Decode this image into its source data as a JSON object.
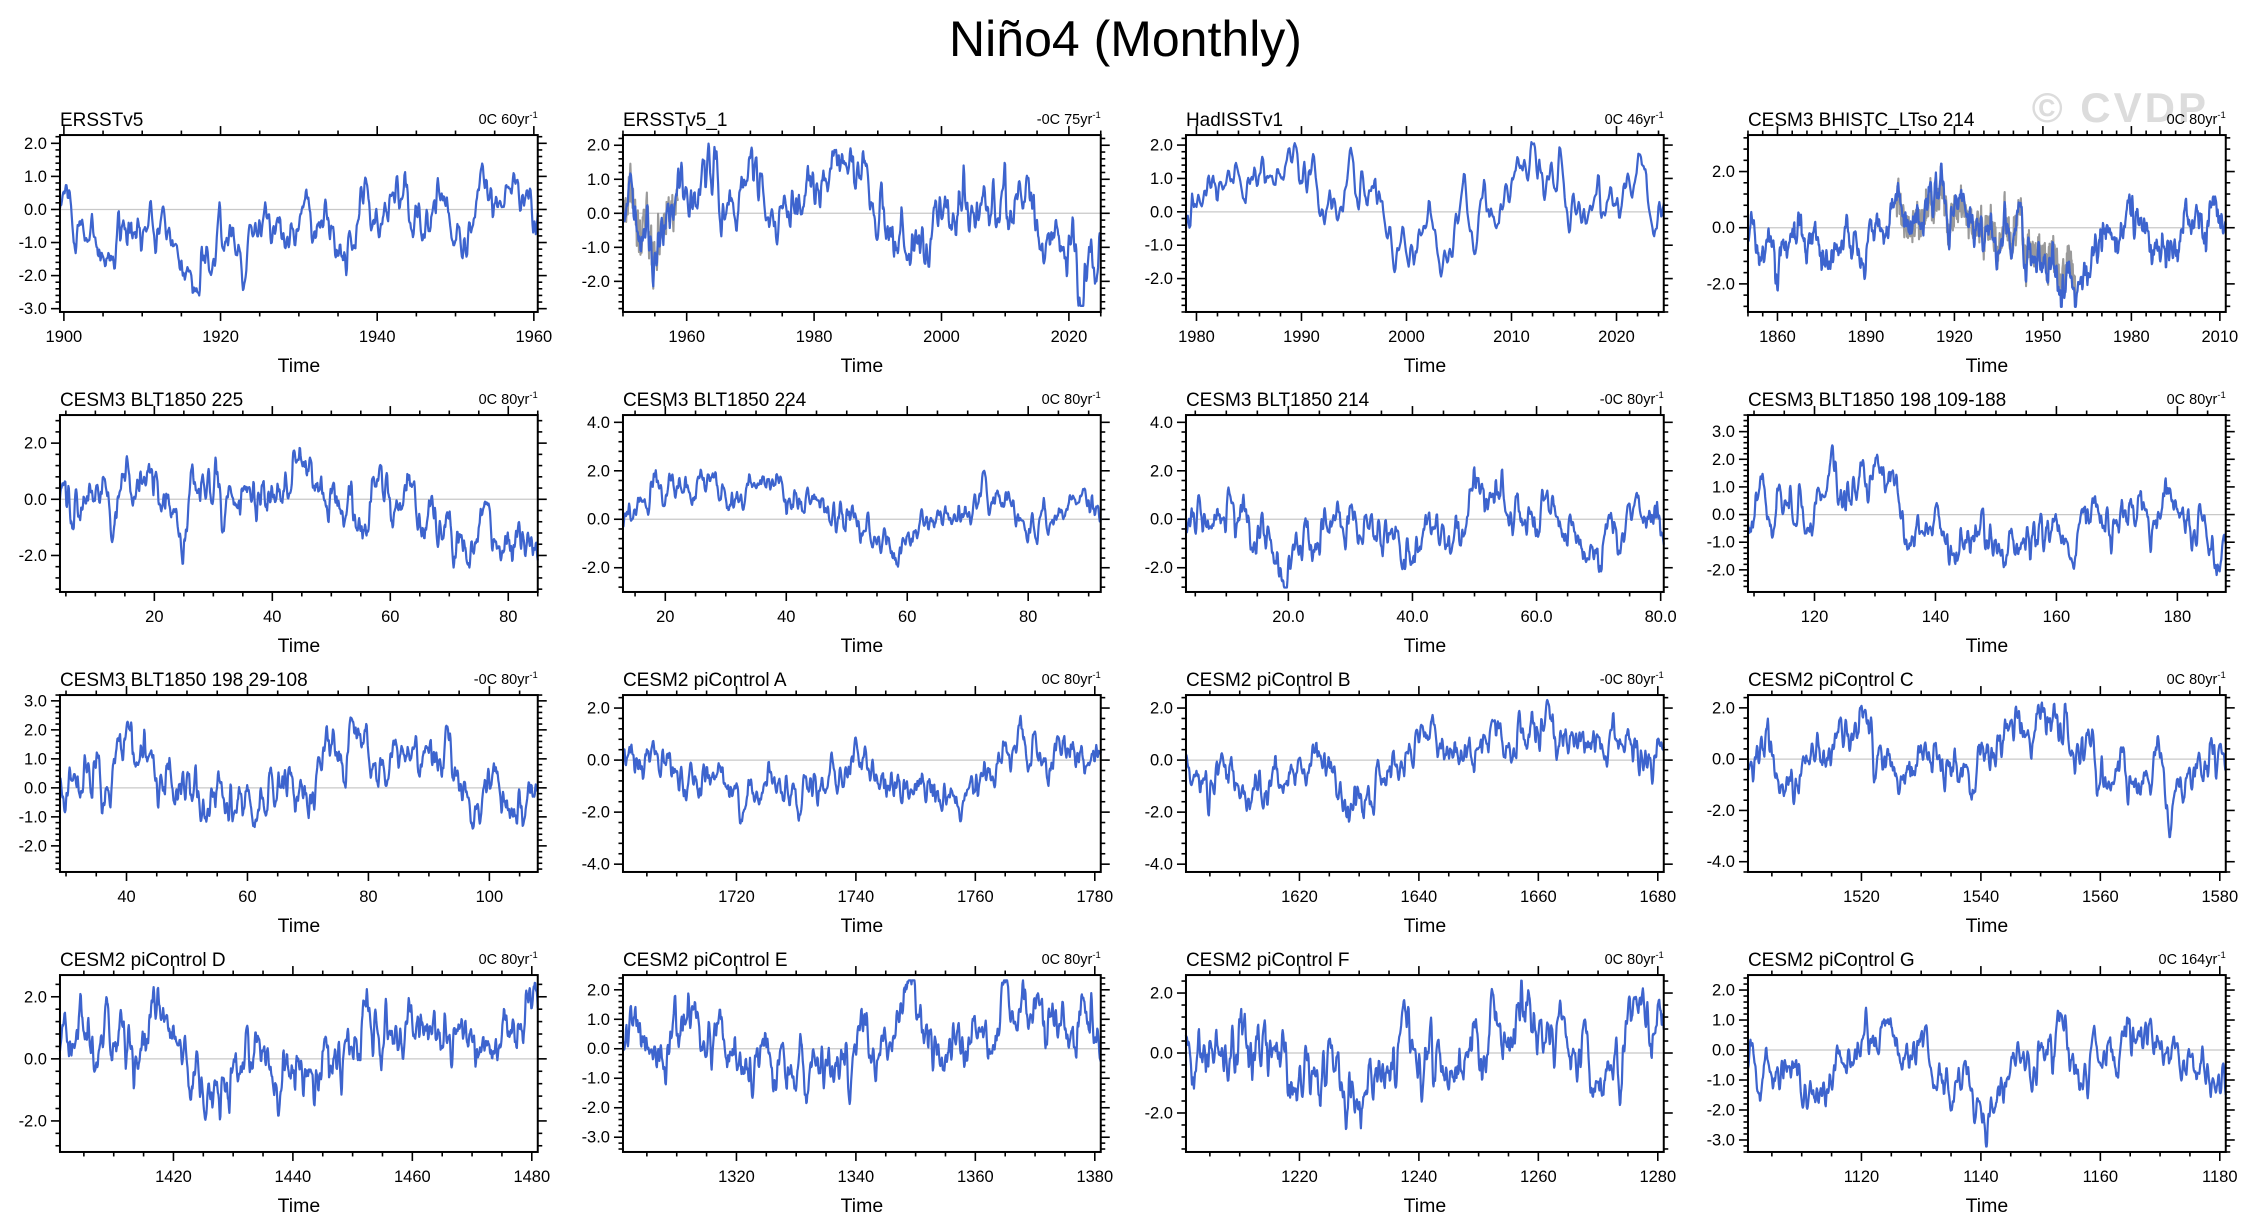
{
  "page": {
    "title": "Niño4 (Monthly)",
    "watermark": "© CVDP",
    "xlabel": "Time"
  },
  "colors": {
    "line": "#3D64CE",
    "overlay_line": "#9a9a9a",
    "zero_line": "#c8c8c8",
    "frame": "#000000",
    "watermark": "#dcdcdc"
  },
  "chart_data": [
    {
      "type": "line",
      "title": "ERSSTv5",
      "trend": "0C 60yr",
      "trend_exp": "-1",
      "xlabel": "Time",
      "xlim": [
        1899.5,
        1960.5
      ],
      "xticks": [
        1900,
        1920,
        1940,
        1960
      ],
      "xtick_labels": [
        "1900",
        "1920",
        "1940",
        "1960"
      ],
      "x_minor_step": 5,
      "ylim": [
        -3.1,
        2.25
      ],
      "yticks": [
        2,
        1,
        0,
        -1,
        -2,
        -3
      ],
      "ytick_labels": [
        "2.0",
        "1.0",
        "0.0",
        "-1.0",
        "-2.0",
        "-3.0"
      ],
      "y_minor_step": 0.2,
      "series_note": "monthly SST anomaly, approx range -2.5 to 1.9"
    },
    {
      "type": "line",
      "title": "ERSSTv5_1",
      "trend": "-0C 75yr",
      "trend_exp": "-1",
      "xlabel": "Time",
      "xlim": [
        1950,
        2025
      ],
      "xticks": [
        1960,
        1980,
        2000,
        2020
      ],
      "xtick_labels": [
        "1960",
        "1980",
        "2000",
        "2020"
      ],
      "x_minor_step": 5,
      "ylim": [
        -2.9,
        2.3
      ],
      "yticks": [
        2,
        1,
        0,
        -1,
        -2
      ],
      "ytick_labels": [
        "2.0",
        "1.0",
        "0.0",
        "-1.0",
        "-2.0"
      ],
      "y_minor_step": 0.2,
      "overlay_span": [
        0.0,
        0.115
      ],
      "series_note": "monthly SST anomaly, approx range -1.9 to 1.5, gray companion line 1950-1958"
    },
    {
      "type": "line",
      "title": "HadISSTv1",
      "trend": "0C 46yr",
      "trend_exp": "-1",
      "xlabel": "Time",
      "xlim": [
        1979,
        2024.5
      ],
      "xticks": [
        1980,
        1990,
        2000,
        2010,
        2020
      ],
      "xtick_labels": [
        "1980",
        "1990",
        "2000",
        "2010",
        "2020"
      ],
      "x_minor_step": 2,
      "ylim": [
        -3.0,
        2.3
      ],
      "yticks": [
        2,
        1,
        0,
        -1,
        -2
      ],
      "ytick_labels": [
        "2.0",
        "1.0",
        "0.0",
        "-1.0",
        "-2.0"
      ],
      "y_minor_step": 0.2,
      "series_note": "monthly SST anomaly, approx range -1.8 to 1.6"
    },
    {
      "type": "line",
      "title": "CESM3 BHISTC_LTso 214",
      "trend": "0C 80yr",
      "trend_exp": "-1",
      "xlabel": "Time",
      "xlim": [
        1850,
        2012
      ],
      "xticks": [
        1860,
        1890,
        1920,
        1950,
        1980,
        2010
      ],
      "xtick_labels": [
        "1860",
        "1890",
        "1920",
        "1950",
        "1980",
        "2010"
      ],
      "x_minor_step": 5,
      "ylim": [
        -3.0,
        3.3
      ],
      "yticks": [
        2,
        0,
        -2
      ],
      "ytick_labels": [
        "2.0",
        "0.0",
        "-2.0"
      ],
      "y_minor_step": 0.4,
      "overlay_span": [
        0.31,
        0.685
      ],
      "series_note": "monthly SST anomaly, approx range -2.6 to 2.9, gray companion line ~1900-1962"
    },
    {
      "type": "line",
      "title": "CESM3 BLT1850 225",
      "trend": "0C 80yr",
      "trend_exp": "-1",
      "xlabel": "Time",
      "xlim": [
        4,
        85
      ],
      "xticks": [
        20,
        40,
        60,
        80
      ],
      "xtick_labels": [
        "20",
        "40",
        "60",
        "80"
      ],
      "x_minor_step": 5,
      "ylim": [
        -3.3,
        3.0
      ],
      "yticks": [
        2,
        0,
        -2
      ],
      "ytick_labels": [
        "2.0",
        "0.0",
        "-2.0"
      ],
      "y_minor_step": 0.4,
      "series_note": "monthly SST anomaly, approx range -2.8 to 2.5"
    },
    {
      "type": "line",
      "title": "CESM3 BLT1850 224",
      "trend": "0C 80yr",
      "trend_exp": "-1",
      "xlabel": "Time",
      "xlim": [
        13,
        92
      ],
      "xticks": [
        20,
        40,
        60,
        80
      ],
      "xtick_labels": [
        "20",
        "40",
        "60",
        "80"
      ],
      "x_minor_step": 5,
      "ylim": [
        -3.0,
        4.3
      ],
      "yticks": [
        4,
        2,
        0,
        -2
      ],
      "ytick_labels": [
        "4.0",
        "2.0",
        "0.0",
        "-2.0"
      ],
      "y_minor_step": 0.4,
      "series_note": "monthly SST anomaly, approx range -2.6 to 3.6"
    },
    {
      "type": "line",
      "title": "CESM3 BLT1850 214",
      "trend": "-0C 80yr",
      "trend_exp": "-1",
      "xlabel": "Time",
      "xlim": [
        3.5,
        80.5
      ],
      "xticks": [
        20,
        40,
        60,
        80
      ],
      "xtick_labels": [
        "20.0",
        "40.0",
        "60.0",
        "80.0"
      ],
      "x_minor_step": 5,
      "ylim": [
        -3.0,
        4.3
      ],
      "yticks": [
        4,
        2,
        0,
        -2
      ],
      "ytick_labels": [
        "4.0",
        "2.0",
        "0.0",
        "-2.0"
      ],
      "y_minor_step": 0.4,
      "series_note": "monthly SST anomaly, approx range -2.4 to 3.5 with large peak near x=70"
    },
    {
      "type": "line",
      "title": "CESM3 BLT1850 198 109-188",
      "trend": "0C 80yr",
      "trend_exp": "-1",
      "xlabel": "Time",
      "xlim": [
        109,
        188
      ],
      "xticks": [
        120,
        140,
        160,
        180
      ],
      "xtick_labels": [
        "120",
        "140",
        "160",
        "180"
      ],
      "x_minor_step": 5,
      "ylim": [
        -2.8,
        3.6
      ],
      "yticks": [
        3,
        2,
        1,
        0,
        -1,
        -2
      ],
      "ytick_labels": [
        "3.0",
        "2.0",
        "1.0",
        "0.0",
        "-1.0",
        "-2.0"
      ],
      "y_minor_step": 0.2,
      "series_note": "monthly SST anomaly, approx range -2.3 to 3.3"
    },
    {
      "type": "line",
      "title": "CESM3 BLT1850 198 29-108",
      "trend": "-0C 80yr",
      "trend_exp": "-1",
      "xlabel": "Time",
      "xlim": [
        29,
        108
      ],
      "xticks": [
        40,
        60,
        80,
        100
      ],
      "xtick_labels": [
        "40",
        "60",
        "80",
        "100"
      ],
      "x_minor_step": 5,
      "ylim": [
        -2.9,
        3.2
      ],
      "yticks": [
        3,
        2,
        1,
        0,
        -1,
        -2
      ],
      "ytick_labels": [
        "3.0",
        "2.0",
        "1.0",
        "0.0",
        "-1.0",
        "-2.0"
      ],
      "y_minor_step": 0.2,
      "series_note": "monthly SST anomaly, approx range -2.5 to 2.6"
    },
    {
      "type": "line",
      "title": "CESM2 piControl A",
      "trend": "0C 80yr",
      "trend_exp": "-1",
      "xlabel": "Time",
      "xlim": [
        1701,
        1781
      ],
      "xticks": [
        1720,
        1740,
        1760,
        1780
      ],
      "xtick_labels": [
        "1720",
        "1740",
        "1760",
        "1780"
      ],
      "x_minor_step": 5,
      "ylim": [
        -4.3,
        2.5
      ],
      "yticks": [
        2,
        0,
        -2,
        -4
      ],
      "ytick_labels": [
        "2.0",
        "0.0",
        "-2.0",
        "-4.0"
      ],
      "y_minor_step": 0.4,
      "series_note": "monthly SST anomaly, approx range -3.4 to 2.2"
    },
    {
      "type": "line",
      "title": "CESM2 piControl B",
      "trend": "-0C 80yr",
      "trend_exp": "-1",
      "xlabel": "Time",
      "xlim": [
        1601,
        1681
      ],
      "xticks": [
        1620,
        1640,
        1660,
        1680
      ],
      "xtick_labels": [
        "1620",
        "1640",
        "1660",
        "1680"
      ],
      "x_minor_step": 5,
      "ylim": [
        -4.3,
        2.5
      ],
      "yticks": [
        2,
        0,
        -2,
        -4
      ],
      "ytick_labels": [
        "2.0",
        "0.0",
        "-2.0",
        "-4.0"
      ],
      "y_minor_step": 0.4,
      "series_note": "monthly SST anomaly, approx range -3.3 to 2.3"
    },
    {
      "type": "line",
      "title": "CESM2 piControl C",
      "trend": "0C 80yr",
      "trend_exp": "-1",
      "xlabel": "Time",
      "xlim": [
        1501,
        1581
      ],
      "xticks": [
        1520,
        1540,
        1560,
        1580
      ],
      "xtick_labels": [
        "1520",
        "1540",
        "1560",
        "1580"
      ],
      "x_minor_step": 5,
      "ylim": [
        -4.4,
        2.5
      ],
      "yticks": [
        2,
        0,
        -2,
        -4
      ],
      "ytick_labels": [
        "2.0",
        "0.0",
        "-2.0",
        "-4.0"
      ],
      "y_minor_step": 0.4,
      "series_note": "monthly SST anomaly, approx range -3.9 to 2.3"
    },
    {
      "type": "line",
      "title": "CESM2 piControl D",
      "trend": "0C 80yr",
      "trend_exp": "-1",
      "xlabel": "Time",
      "xlim": [
        1401,
        1481
      ],
      "xticks": [
        1420,
        1440,
        1460,
        1480
      ],
      "xtick_labels": [
        "1420",
        "1440",
        "1460",
        "1480"
      ],
      "x_minor_step": 5,
      "ylim": [
        -3.0,
        2.7
      ],
      "yticks": [
        2,
        0,
        -2
      ],
      "ytick_labels": [
        "2.0",
        "0.0",
        "-2.0"
      ],
      "y_minor_step": 0.4,
      "series_note": "monthly SST anomaly, approx range -2.6 to 2.5"
    },
    {
      "type": "line",
      "title": "CESM2 piControl E",
      "trend": "0C 80yr",
      "trend_exp": "-1",
      "xlabel": "Time",
      "xlim": [
        1301,
        1381
      ],
      "xticks": [
        1320,
        1340,
        1360,
        1380
      ],
      "xtick_labels": [
        "1320",
        "1340",
        "1360",
        "1380"
      ],
      "x_minor_step": 5,
      "ylim": [
        -3.5,
        2.5
      ],
      "yticks": [
        2,
        1,
        0,
        -1,
        -2,
        -3
      ],
      "ytick_labels": [
        "2.0",
        "1.0",
        "0.0",
        "-1.0",
        "-2.0",
        "-3.0"
      ],
      "y_minor_step": 0.2,
      "series_note": "monthly SST anomaly, approx range -3.2 to 2.2"
    },
    {
      "type": "line",
      "title": "CESM2 piControl F",
      "trend": "0C 80yr",
      "trend_exp": "-1",
      "xlabel": "Time",
      "xlim": [
        1201,
        1281
      ],
      "xticks": [
        1220,
        1240,
        1260,
        1280
      ],
      "xtick_labels": [
        "1220",
        "1240",
        "1260",
        "1280"
      ],
      "x_minor_step": 5,
      "ylim": [
        -3.3,
        2.6
      ],
      "yticks": [
        2,
        0,
        -2
      ],
      "ytick_labels": [
        "2.0",
        "0.0",
        "-2.0"
      ],
      "y_minor_step": 0.4,
      "series_note": "monthly SST anomaly, approx range -3.0 to 2.4"
    },
    {
      "type": "line",
      "title": "CESM2 piControl G",
      "trend": "0C 164yr",
      "trend_exp": "-1",
      "xlabel": "Time",
      "xlim": [
        1101,
        1181
      ],
      "xticks": [
        1120,
        1140,
        1160,
        1180
      ],
      "xtick_labels": [
        "1120",
        "1140",
        "1160",
        "1180"
      ],
      "x_minor_step": 5,
      "ylim": [
        -3.4,
        2.5
      ],
      "yticks": [
        2,
        1,
        0,
        -1,
        -2,
        -3
      ],
      "ytick_labels": [
        "2.0",
        "1.0",
        "0.0",
        "-1.0",
        "-2.0",
        "-3.0"
      ],
      "y_minor_step": 0.2,
      "series_note": "monthly SST anomaly, approx range -2.9 to 2.3"
    }
  ]
}
